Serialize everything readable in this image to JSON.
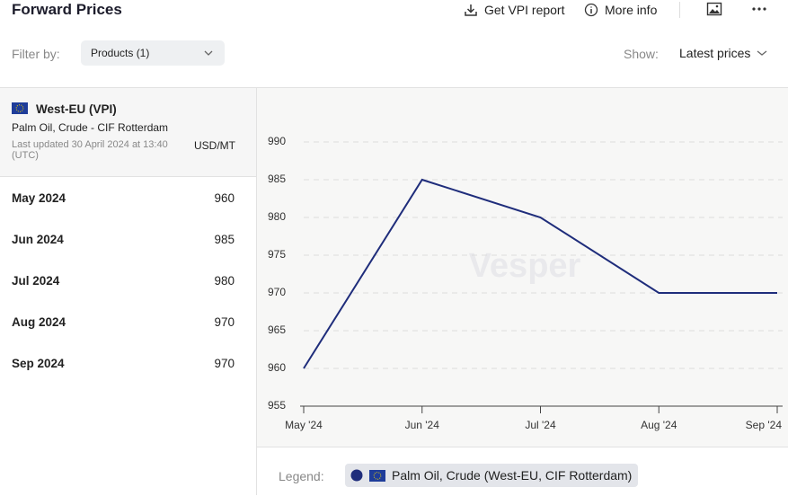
{
  "header": {
    "title": "Forward Prices",
    "get_report": "Get VPI report",
    "more_info": "More info"
  },
  "filters": {
    "filter_label": "Filter by:",
    "products": "Products (1)",
    "show_label": "Show:",
    "show_value": "Latest prices"
  },
  "panel": {
    "region": "West-EU (VPI)",
    "product": "Palm Oil, Crude - CIF Rotterdam",
    "updated": "Last updated 30 April 2024 at 13:40 (UTC)",
    "unit": "USD/MT"
  },
  "table": {
    "rows": [
      [
        "May 2024",
        960
      ],
      [
        "Jun 2024",
        985
      ],
      [
        "Jul 2024",
        980
      ],
      [
        "Aug 2024",
        970
      ],
      [
        "Sep 2024",
        970
      ]
    ]
  },
  "chart_data": {
    "type": "line",
    "watermark": "Vesper",
    "legend_title": "Legend:",
    "categories": [
      "May '24",
      "Jun '24",
      "Jul '24",
      "Aug '24",
      "Sep '24"
    ],
    "series": [
      {
        "name": "Palm Oil, Crude (West-EU, CIF Rotterdam)",
        "color": "#1f2d7b",
        "values": [
          960,
          985,
          980,
          970,
          970
        ]
      }
    ],
    "ylim": [
      955,
      990
    ],
    "yticks": [
      955,
      960,
      965,
      970,
      975,
      980,
      985,
      990
    ],
    "grid": true
  }
}
